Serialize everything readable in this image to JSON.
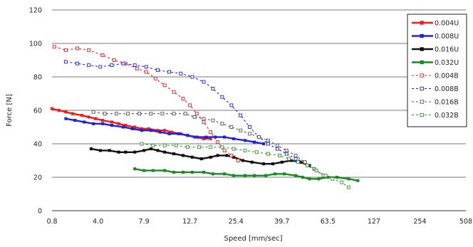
{
  "chart_data": {
    "type": "line",
    "xlabel": "Speed [mm/sec]",
    "ylabel": "Force [N]",
    "x_tick_labels": [
      "0.8",
      "4.0",
      "7.9",
      "12.7",
      "25.4",
      "39.7",
      "63.5",
      "127",
      "254",
      "508"
    ],
    "y_ticks": [
      0,
      20,
      40,
      60,
      80,
      100,
      120
    ],
    "ylim": [
      0,
      120
    ],
    "grid": "horizontal",
    "legend_position": "top-right",
    "series": [
      {
        "name": "0.004U",
        "color": "#ee1c1c",
        "style": "solid",
        "marker": "filled-square",
        "points": [
          [
            0.0,
            61
          ],
          [
            0.15,
            60
          ],
          [
            0.3,
            59
          ],
          [
            0.45,
            58
          ],
          [
            0.65,
            57
          ],
          [
            0.8,
            56
          ],
          [
            0.95,
            55
          ],
          [
            1.1,
            54
          ],
          [
            1.3,
            53
          ],
          [
            1.45,
            52
          ],
          [
            1.6,
            51
          ],
          [
            1.8,
            50
          ],
          [
            1.95,
            49
          ],
          [
            2.1,
            49
          ],
          [
            2.3,
            48
          ],
          [
            2.45,
            48
          ],
          [
            2.6,
            47
          ],
          [
            2.8,
            46
          ],
          [
            2.95,
            45
          ],
          [
            3.1,
            44
          ],
          [
            3.3,
            43
          ],
          [
            3.45,
            43
          ]
        ]
      },
      {
        "name": "0.008U",
        "color": "#1a23e6",
        "style": "solid",
        "marker": "filled-square",
        "points": [
          [
            0.3,
            55
          ],
          [
            0.5,
            54
          ],
          [
            0.7,
            53
          ],
          [
            0.9,
            52
          ],
          [
            1.1,
            52
          ],
          [
            1.3,
            51
          ],
          [
            1.55,
            50
          ],
          [
            1.75,
            49
          ],
          [
            1.95,
            48
          ],
          [
            2.15,
            48
          ],
          [
            2.35,
            47
          ],
          [
            2.55,
            46
          ],
          [
            2.75,
            46
          ],
          [
            2.95,
            45
          ],
          [
            3.15,
            44
          ],
          [
            3.35,
            44
          ],
          [
            3.55,
            44
          ],
          [
            3.75,
            44
          ],
          [
            3.95,
            43
          ],
          [
            4.2,
            42
          ],
          [
            4.4,
            41
          ],
          [
            4.6,
            40
          ]
        ]
      },
      {
        "name": "0.016U",
        "color": "#111111",
        "style": "solid",
        "marker": "filled-square",
        "points": [
          [
            0.85,
            37
          ],
          [
            1.05,
            36
          ],
          [
            1.25,
            36
          ],
          [
            1.45,
            35
          ],
          [
            1.6,
            35
          ],
          [
            1.8,
            35
          ],
          [
            2.0,
            36
          ],
          [
            2.15,
            37
          ],
          [
            2.3,
            36
          ],
          [
            2.45,
            35
          ],
          [
            2.65,
            34
          ],
          [
            2.85,
            33
          ],
          [
            3.05,
            32
          ],
          [
            3.25,
            31
          ],
          [
            3.45,
            32
          ],
          [
            3.6,
            33
          ],
          [
            3.8,
            33
          ],
          [
            3.95,
            32
          ],
          [
            4.15,
            30
          ],
          [
            4.35,
            29
          ],
          [
            4.6,
            28
          ],
          [
            4.8,
            28
          ],
          [
            5.0,
            29
          ],
          [
            5.2,
            30
          ],
          [
            5.4,
            29
          ],
          [
            5.6,
            27
          ]
        ]
      },
      {
        "name": "0.032U",
        "color": "#1a8a23",
        "style": "solid",
        "marker": "filled-square",
        "points": [
          [
            1.8,
            25
          ],
          [
            2.0,
            24
          ],
          [
            2.2,
            24
          ],
          [
            2.45,
            24
          ],
          [
            2.65,
            23
          ],
          [
            2.85,
            23
          ],
          [
            3.05,
            23
          ],
          [
            3.3,
            23
          ],
          [
            3.5,
            22
          ],
          [
            3.75,
            22
          ],
          [
            3.95,
            21
          ],
          [
            4.2,
            21
          ],
          [
            4.4,
            21
          ],
          [
            4.65,
            21
          ],
          [
            4.85,
            22
          ],
          [
            5.05,
            22
          ],
          [
            5.3,
            21
          ],
          [
            5.45,
            20
          ],
          [
            5.6,
            19
          ],
          [
            5.8,
            19
          ],
          [
            6.0,
            20
          ],
          [
            6.2,
            20
          ],
          [
            6.45,
            19
          ],
          [
            6.65,
            18
          ]
        ]
      },
      {
        "name": "0.004B",
        "color": "#ee1c1c",
        "style": "dashed",
        "marker": "open-square",
        "points": [
          [
            0.05,
            98
          ],
          [
            0.3,
            96
          ],
          [
            0.55,
            97
          ],
          [
            0.8,
            96
          ],
          [
            1.1,
            93
          ],
          [
            1.35,
            90
          ],
          [
            1.6,
            88
          ],
          [
            1.85,
            85
          ],
          [
            2.05,
            83
          ],
          [
            2.25,
            79
          ],
          [
            2.45,
            75
          ],
          [
            2.65,
            71
          ],
          [
            2.85,
            67
          ],
          [
            3.0,
            63
          ],
          [
            3.15,
            58
          ],
          [
            3.3,
            53
          ],
          [
            3.45,
            47
          ],
          [
            3.6,
            41
          ],
          [
            3.75,
            36
          ],
          [
            3.9,
            33
          ],
          [
            4.05,
            30
          ]
        ]
      },
      {
        "name": "0.008B",
        "color": "#1a23e6",
        "style": "dashed",
        "marker": "open-square",
        "points": [
          [
            0.3,
            89
          ],
          [
            0.55,
            88
          ],
          [
            0.8,
            87
          ],
          [
            1.05,
            86
          ],
          [
            1.3,
            87
          ],
          [
            1.55,
            88
          ],
          [
            1.8,
            87
          ],
          [
            2.05,
            86
          ],
          [
            2.3,
            84
          ],
          [
            2.55,
            83
          ],
          [
            2.8,
            82
          ],
          [
            3.05,
            80
          ],
          [
            3.3,
            77
          ],
          [
            3.5,
            73
          ],
          [
            3.7,
            68
          ],
          [
            3.9,
            63
          ],
          [
            4.1,
            57
          ],
          [
            4.3,
            50
          ],
          [
            4.5,
            44
          ],
          [
            4.7,
            40
          ],
          [
            4.9,
            37
          ],
          [
            5.1,
            34
          ],
          [
            5.3,
            31
          ],
          [
            5.5,
            29
          ]
        ]
      },
      {
        "name": "0.016B",
        "color": "#555555",
        "style": "dashed",
        "marker": "open-square",
        "points": [
          [
            0.9,
            59
          ],
          [
            1.15,
            58
          ],
          [
            1.4,
            58
          ],
          [
            1.65,
            58
          ],
          [
            1.9,
            58
          ],
          [
            2.15,
            58
          ],
          [
            2.4,
            58
          ],
          [
            2.65,
            58
          ],
          [
            2.9,
            58
          ],
          [
            3.1,
            56
          ],
          [
            3.3,
            55
          ],
          [
            3.5,
            54
          ],
          [
            3.7,
            52
          ],
          [
            3.9,
            50
          ],
          [
            4.1,
            48
          ],
          [
            4.3,
            46
          ],
          [
            4.5,
            44
          ],
          [
            4.7,
            42
          ],
          [
            4.9,
            39
          ],
          [
            5.1,
            36
          ],
          [
            5.3,
            33
          ],
          [
            5.5,
            29
          ],
          [
            5.7,
            25
          ],
          [
            5.9,
            21
          ]
        ]
      },
      {
        "name": "0.032B",
        "color": "#2a9a2a",
        "style": "dashed",
        "marker": "open-square",
        "points": [
          [
            1.95,
            40
          ],
          [
            2.2,
            39
          ],
          [
            2.45,
            39
          ],
          [
            2.7,
            39
          ],
          [
            2.95,
            38
          ],
          [
            3.2,
            38
          ],
          [
            3.45,
            38
          ],
          [
            3.7,
            38
          ],
          [
            3.95,
            37
          ],
          [
            4.2,
            36
          ],
          [
            4.45,
            35
          ],
          [
            4.7,
            34
          ],
          [
            4.95,
            33
          ],
          [
            5.15,
            31
          ],
          [
            5.35,
            29
          ],
          [
            5.55,
            27
          ],
          [
            5.75,
            24
          ],
          [
            5.95,
            21
          ],
          [
            6.1,
            19
          ],
          [
            6.3,
            17
          ],
          [
            6.45,
            14
          ]
        ]
      }
    ]
  }
}
